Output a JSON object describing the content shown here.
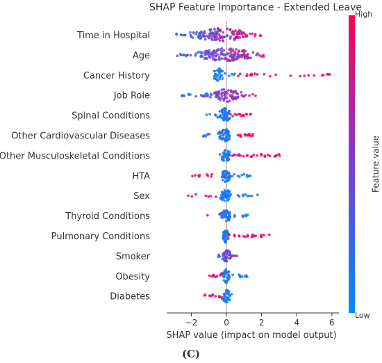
{
  "chart_data": {
    "type": "scatter",
    "subtype": "shap-beeswarm",
    "title": "SHAP Feature Importance - Extended Leave",
    "xlabel": "SHAP value (impact on model output)",
    "ylabel": "",
    "xlim": [
      -3.4,
      6.4
    ],
    "xticks": [
      -2,
      0,
      2,
      4,
      6
    ],
    "xtick_labels": [
      "−2",
      "0",
      "2",
      "4",
      "6"
    ],
    "grid": false,
    "colorbar": {
      "label": "Feature value",
      "high": "High",
      "low": "Low",
      "low_color": "#008afb",
      "high_color": "#ff0052"
    },
    "features": [
      {
        "name": "Time in Hospital",
        "range": [
          -3.0,
          2.0
        ],
        "core": [
          -1.6,
          1.0
        ],
        "density": 135,
        "color_mode": "mixed"
      },
      {
        "name": "Age",
        "range": [
          -2.9,
          2.3
        ],
        "core": [
          -1.3,
          1.3
        ],
        "density": 145,
        "color_mode": "mixed"
      },
      {
        "name": "Cancer History",
        "range": [
          -0.8,
          6.0
        ],
        "core": [
          -0.7,
          -0.2
        ],
        "density": 60,
        "color_mode": "cancer"
      },
      {
        "name": "Job Role",
        "range": [
          -2.6,
          1.8
        ],
        "core": [
          -0.6,
          0.7
        ],
        "density": 90,
        "color_mode": "mixed"
      },
      {
        "name": "Spinal Conditions",
        "range": [
          -1.2,
          1.5
        ],
        "core": [
          -0.4,
          0.2
        ],
        "density": 70,
        "color_mode": "high_right"
      },
      {
        "name": "Other Cardiovascular Diseases",
        "range": [
          -1.4,
          1.5
        ],
        "core": [
          -0.4,
          0.2
        ],
        "density": 70,
        "color_mode": "high_right"
      },
      {
        "name": "Other Musculoskeletal Conditions",
        "range": [
          -0.6,
          3.4
        ],
        "core": [
          -0.3,
          0.2
        ],
        "density": 70,
        "color_mode": "high_right"
      },
      {
        "name": "HTA",
        "range": [
          -2.1,
          1.5
        ],
        "core": [
          -0.3,
          0.2
        ],
        "density": 65,
        "color_mode": "high_left"
      },
      {
        "name": "Sex",
        "range": [
          -2.2,
          1.8
        ],
        "core": [
          -0.3,
          0.2
        ],
        "density": 65,
        "color_mode": "high_left"
      },
      {
        "name": "Thyroid Conditions",
        "range": [
          -1.3,
          1.4
        ],
        "core": [
          -0.3,
          0.2
        ],
        "density": 60,
        "color_mode": "high_left"
      },
      {
        "name": "Pulmonary Conditions",
        "range": [
          -0.2,
          2.5
        ],
        "core": [
          -0.2,
          0.1
        ],
        "density": 60,
        "color_mode": "high_right"
      },
      {
        "name": "Smoker",
        "range": [
          -0.5,
          0.9
        ],
        "core": [
          -0.2,
          0.2
        ],
        "density": 45,
        "color_mode": "mixed"
      },
      {
        "name": "Obesity",
        "range": [
          -1.3,
          1.3
        ],
        "core": [
          -0.2,
          0.2
        ],
        "density": 55,
        "color_mode": "high_left"
      },
      {
        "name": "Diabetes",
        "range": [
          -1.3,
          0.3
        ],
        "core": [
          -0.2,
          0.2
        ],
        "density": 45,
        "color_mode": "high_left"
      }
    ]
  },
  "panel_label": "(C)"
}
